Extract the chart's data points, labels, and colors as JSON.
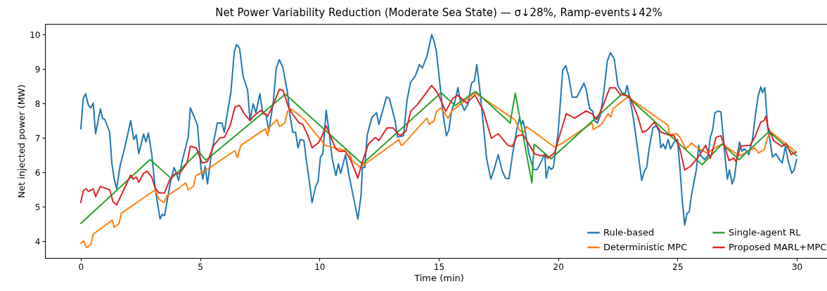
{
  "chart_data": {
    "type": "line",
    "title": "Net Power Variability Reduction (Moderate Sea State) — σ↓28%, Ramp-events↓42%",
    "xlabel": "Time (min)",
    "ylabel": "Net injected power (MW)",
    "xlim": [
      -1.5,
      31.5
    ],
    "ylim": [
      3.51,
      10.31
    ],
    "xticks": [
      0,
      5,
      10,
      15,
      20,
      25,
      30
    ],
    "yticks": [
      4,
      5,
      6,
      7,
      8,
      9,
      10
    ],
    "legend": "bottom right",
    "series": [
      {
        "name": "Rule-based",
        "color": "#1f77b4",
        "x": [
          0,
          0.1,
          0.2,
          0.32,
          0.42,
          0.52,
          0.62,
          0.82,
          0.91,
          1.01,
          1.21,
          1.3,
          1.4,
          1.5,
          1.65,
          1.84,
          2.09,
          2.22,
          2.32,
          2.43,
          2.63,
          2.73,
          2.83,
          2.97,
          3.12,
          3.32,
          3.41,
          3.51,
          3.76,
          3.91,
          4.0,
          4.1,
          4.25,
          4.5,
          4.59,
          4.74,
          4.89,
          5.03,
          5.11,
          5.21,
          5.31,
          5.48,
          5.72,
          5.92,
          6.01,
          6.16,
          6.29,
          6.43,
          6.53,
          6.65,
          6.8,
          6.99,
          7.09,
          7.22,
          7.34,
          7.5,
          7.63,
          7.75,
          7.88,
          8.07,
          8.19,
          8.32,
          8.47,
          8.66,
          8.76,
          8.88,
          9.0,
          9.1,
          9.2,
          9.35,
          9.45,
          9.55,
          9.69,
          9.84,
          9.94,
          10.04,
          10.14,
          10.28,
          10.38,
          10.53,
          10.69,
          10.79,
          10.89,
          11.09,
          11.22,
          11.41,
          11.61,
          11.74,
          11.8,
          11.9,
          12.0,
          12.2,
          12.39,
          12.49,
          12.64,
          12.81,
          12.93,
          13.18,
          13.27,
          13.52,
          13.67,
          13.82,
          14.01,
          14.19,
          14.31,
          14.5,
          14.6,
          14.7,
          14.8,
          14.9,
          15.0,
          15.19,
          15.32,
          15.42,
          15.53,
          15.68,
          15.8,
          15.9,
          16.07,
          16.22,
          16.37,
          16.49,
          16.59,
          16.71,
          16.86,
          17.0,
          17.18,
          17.31,
          17.49,
          17.64,
          17.79,
          17.94,
          18.08,
          18.26,
          18.38,
          18.46,
          18.53,
          18.63,
          18.77,
          18.97,
          19.12,
          19.31,
          19.44,
          19.5,
          19.61,
          19.71,
          19.8,
          20.0,
          20.19,
          20.32,
          20.44,
          20.59,
          20.78,
          20.93,
          21.08,
          21.17,
          21.32,
          21.45,
          21.52,
          21.64,
          21.76,
          21.91,
          22.06,
          22.19,
          22.35,
          22.5,
          22.7,
          22.79,
          22.89,
          22.99,
          23.14,
          23.33,
          23.5,
          23.61,
          23.71,
          23.81,
          23.97,
          24.12,
          24.24,
          24.3,
          24.4,
          24.49,
          24.61,
          24.71,
          24.86,
          25.0,
          25.1,
          25.2,
          25.3,
          25.4,
          25.49,
          25.59,
          25.79,
          25.89,
          25.98,
          26.13,
          26.28,
          26.38,
          26.47,
          26.57,
          26.72,
          26.82,
          26.91,
          27.01,
          27.09,
          27.18,
          27.29,
          27.39,
          27.5,
          27.6,
          27.7,
          27.8,
          27.9,
          27.99,
          28.14,
          28.27,
          28.39,
          28.49,
          28.56,
          28.66,
          28.78,
          28.87,
          28.98,
          29.12,
          29.27,
          29.39,
          29.52,
          29.66,
          29.79,
          29.89,
          29.99
        ],
        "values": [
          7.26,
          8.14,
          8.28,
          7.94,
          7.87,
          8.01,
          7.12,
          7.84,
          7.57,
          7.53,
          7.16,
          6.27,
          5.8,
          5.52,
          6.2,
          6.71,
          7.5,
          6.95,
          7.09,
          6.54,
          7.11,
          6.88,
          7.14,
          6.54,
          5.52,
          4.64,
          4.78,
          4.74,
          5.73,
          6.14,
          5.97,
          5.76,
          6.34,
          7.02,
          7.87,
          7.63,
          7.36,
          6.14,
          5.8,
          6.17,
          5.66,
          6.58,
          7.43,
          7.43,
          7.16,
          7.8,
          8.33,
          9.5,
          9.71,
          9.61,
          8.79,
          8.38,
          7.5,
          7.99,
          7.73,
          8.28,
          7.7,
          7.7,
          7.19,
          8.08,
          9.03,
          9.27,
          9.03,
          8.31,
          7.67,
          7.16,
          7.16,
          6.71,
          6.95,
          6.92,
          6.34,
          5.86,
          5.12,
          5.59,
          5.73,
          6.44,
          6.54,
          7.8,
          7.29,
          6.41,
          5.9,
          6.24,
          5.97,
          6.51,
          5.97,
          5.32,
          4.64,
          5.32,
          6.14,
          6.14,
          7.09,
          7.6,
          7.73,
          7.39,
          7.77,
          8.19,
          8.14,
          7.46,
          7.02,
          7.06,
          8.11,
          8.62,
          8.79,
          9.13,
          9.03,
          9.37,
          9.67,
          10.0,
          9.81,
          9.5,
          8.86,
          7.63,
          7.06,
          7.22,
          7.77,
          8.08,
          8.46,
          8.08,
          7.8,
          7.97,
          8.59,
          8.65,
          9.13,
          8.45,
          7.43,
          6.41,
          5.8,
          6.07,
          6.51,
          6.07,
          5.83,
          5.81,
          6.48,
          7.22,
          7.57,
          7.39,
          7.5,
          7.16,
          6.54,
          6.08,
          6.08,
          6.34,
          6.54,
          5.83,
          6.17,
          6.08,
          6.14,
          7.16,
          8.96,
          9.1,
          8.79,
          8.18,
          8.18,
          8.38,
          8.59,
          8.41,
          7.84,
          7.77,
          7.5,
          7.43,
          7.63,
          8.31,
          9.23,
          9.47,
          9.3,
          8.52,
          8.28,
          8.24,
          8.52,
          8.18,
          7.63,
          6.68,
          5.76,
          6.03,
          6.14,
          6.68,
          7.29,
          7.35,
          7.16,
          6.71,
          6.82,
          6.68,
          6.95,
          6.68,
          6.88,
          6.95,
          6.14,
          5.18,
          4.47,
          4.81,
          4.84,
          5.35,
          6.07,
          6.78,
          6.48,
          6.37,
          6.48,
          7.02,
          7.22,
          7.73,
          7.78,
          7.75,
          7.09,
          6.34,
          5.8,
          6.07,
          5.66,
          5.86,
          6.48,
          6.88,
          6.61,
          6.68,
          6.61,
          6.51,
          6.95,
          7.7,
          8.24,
          8.48,
          8.31,
          8.46,
          7.29,
          6.95,
          6.44,
          6.54,
          6.37,
          6.27,
          6.75,
          6.27,
          5.97,
          6.07,
          6.37
        ]
      },
      {
        "name": "Deterministic MPC",
        "color": "#ff7f0e",
        "x": [
          0,
          0.13,
          0.23,
          0.42,
          0.52,
          1.32,
          1.4,
          1.6,
          1.7,
          3.12,
          3.27,
          3.49,
          3.61,
          3.86,
          4.4,
          4.5,
          4.72,
          4.82,
          5.33,
          6.46,
          6.56,
          6.7,
          7.73,
          7.83,
          7.88,
          8.22,
          8.32,
          8.55,
          8.66,
          8.81,
          9.3,
          10.24,
          11.22,
          11.36,
          11.71,
          13.33,
          13.42,
          13.52,
          14.5,
          14.6,
          14.8,
          14.9,
          15.09,
          15.39,
          15.53,
          16.51,
          18.18,
          18.38,
          18.58,
          18.67,
          19.85,
          20.19,
          21.42,
          21.47,
          21.81,
          22.1,
          22.2,
          22.3,
          22.92,
          24.61,
          24.66,
          24.96,
          25.1,
          25.35,
          25.59,
          25.74,
          26.23,
          26.87,
          27.6,
          28.24,
          28.39,
          28.63,
          28.78,
          28.93,
          29.99
        ],
        "values": [
          3.94,
          4.01,
          3.81,
          3.9,
          4.2,
          4.61,
          4.4,
          4.5,
          4.81,
          5.49,
          5.22,
          5.12,
          5.32,
          5.42,
          5.69,
          5.49,
          5.59,
          5.9,
          6.1,
          6.63,
          6.42,
          6.78,
          7.26,
          7.06,
          7.29,
          7.53,
          7.33,
          7.43,
          7.77,
          7.84,
          7.58,
          6.78,
          6.61,
          6.34,
          6.14,
          6.95,
          6.78,
          6.82,
          7.57,
          7.39,
          7.5,
          7.77,
          7.87,
          7.57,
          7.77,
          8.31,
          7.53,
          7.22,
          7.16,
          7.33,
          6.73,
          6.85,
          7.43,
          7.24,
          7.39,
          7.7,
          7.6,
          7.85,
          8.19,
          7.36,
          7.09,
          7.12,
          7.02,
          6.68,
          6.85,
          6.75,
          6.56,
          6.82,
          6.48,
          6.71,
          6.56,
          6.65,
          7.02,
          7.16,
          6.58
        ]
      },
      {
        "name": "Single-agent RL",
        "color": "#2ca02c",
        "x": [
          0,
          2.9,
          3.79,
          4.93,
          5.24,
          8.57,
          11.8,
          15.09,
          15.68,
          16.54,
          17.99,
          18.2,
          18.9,
          18.99,
          19.7,
          22.73,
          26.03,
          26.87,
          27.58,
          28.83,
          29.99
        ],
        "values": [
          4.51,
          6.37,
          5.82,
          6.6,
          6.35,
          8.27,
          6.24,
          8.31,
          7.94,
          8.35,
          7.43,
          8.3,
          5.69,
          6.82,
          6.39,
          8.31,
          6.22,
          6.82,
          6.37,
          7.18,
          6.48
        ]
      },
      {
        "name": "Proposed MARL+MPC",
        "color": "#d62728",
        "x": [
          0,
          0.1,
          0.23,
          0.32,
          0.52,
          0.62,
          0.82,
          1.01,
          1.21,
          1.35,
          1.5,
          1.8,
          2.09,
          2.19,
          2.33,
          2.43,
          2.63,
          2.78,
          2.97,
          3.12,
          3.27,
          3.51,
          3.71,
          3.91,
          4.15,
          4.45,
          4.59,
          4.84,
          5.08,
          5.31,
          5.57,
          5.82,
          6.02,
          6.26,
          6.46,
          6.65,
          6.85,
          7.09,
          7.24,
          7.54,
          7.83,
          8.07,
          8.32,
          8.47,
          8.71,
          8.96,
          9.16,
          9.3,
          9.5,
          9.69,
          9.94,
          10.09,
          10.28,
          10.48,
          10.68,
          10.82,
          11.07,
          11.27,
          11.61,
          11.8,
          12.05,
          12.34,
          12.49,
          12.83,
          13.08,
          13.37,
          13.62,
          13.82,
          14.11,
          14.4,
          14.7,
          14.94,
          15.29,
          15.58,
          15.78,
          16.17,
          16.51,
          16.86,
          17.1,
          17.2,
          17.49,
          17.89,
          18.08,
          18.28,
          18.53,
          18.77,
          19.02,
          19.26,
          19.46,
          19.56,
          19.85,
          20.1,
          20.34,
          20.69,
          21.17,
          21.42,
          21.62,
          21.86,
          22.16,
          22.4,
          22.6,
          22.99,
          23.33,
          23.53,
          23.73,
          24.02,
          24.32,
          24.61,
          24.86,
          25.1,
          25.3,
          25.54,
          25.84,
          26.18,
          26.38,
          26.62,
          26.82,
          27.01,
          27.16,
          27.36,
          27.45,
          27.65,
          28.04,
          28.24,
          28.49,
          28.63,
          28.7,
          28.78,
          29.03,
          29.37,
          29.56,
          29.76,
          29.95
        ],
        "values": [
          5.12,
          5.46,
          5.52,
          5.44,
          5.52,
          5.29,
          5.59,
          5.54,
          5.49,
          5.15,
          5.05,
          5.49,
          5.92,
          5.8,
          5.86,
          5.71,
          5.97,
          6.03,
          5.86,
          5.54,
          5.4,
          5.4,
          5.76,
          5.94,
          5.97,
          6.27,
          6.75,
          6.71,
          6.27,
          6.31,
          6.78,
          6.99,
          7.02,
          7.36,
          7.9,
          7.94,
          7.7,
          7.5,
          7.63,
          7.8,
          7.63,
          7.97,
          8.41,
          8.38,
          7.87,
          7.6,
          7.43,
          7.39,
          7.09,
          6.71,
          6.85,
          7.02,
          7.35,
          7.02,
          6.68,
          6.61,
          6.61,
          6.41,
          5.83,
          6.31,
          6.82,
          7.01,
          6.92,
          7.29,
          7.29,
          7.06,
          7.19,
          7.77,
          7.97,
          8.24,
          8.52,
          8.31,
          7.77,
          8.14,
          8.24,
          8.01,
          8.24,
          7.8,
          7.22,
          6.99,
          7.12,
          6.78,
          6.75,
          7.06,
          7.09,
          6.82,
          6.53,
          6.48,
          6.49,
          6.41,
          6.56,
          7.16,
          7.7,
          7.57,
          7.78,
          7.7,
          7.53,
          7.9,
          8.45,
          8.45,
          8.26,
          8.21,
          7.63,
          7.16,
          7.22,
          7.46,
          7.16,
          7.09,
          7.06,
          6.68,
          6.07,
          6.17,
          6.41,
          6.78,
          6.41,
          7.02,
          7.06,
          6.68,
          6.34,
          6.41,
          6.31,
          6.76,
          6.78,
          7.02,
          7.46,
          7.5,
          7.63,
          7.33,
          6.92,
          6.75,
          6.83,
          6.51,
          6.58
        ]
      }
    ]
  }
}
